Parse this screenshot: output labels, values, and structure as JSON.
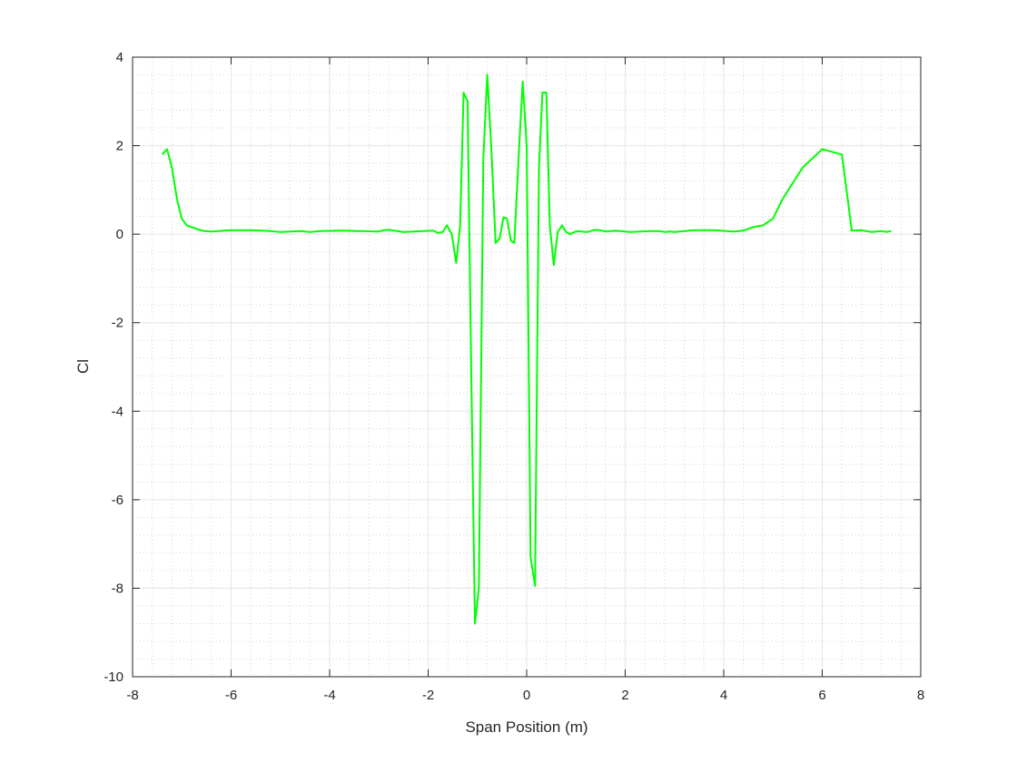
{
  "chart_data": {
    "type": "line",
    "title": "",
    "xlabel": "Span Position (m)",
    "ylabel": "Cl",
    "xlim": [
      -8,
      8
    ],
    "ylim": [
      -10,
      4
    ],
    "xticks": [
      -8,
      -6,
      -4,
      -2,
      0,
      2,
      4,
      6,
      8
    ],
    "yticks": [
      -10,
      -8,
      -6,
      -4,
      -2,
      0,
      2,
      4
    ],
    "xtick_labels": [
      "-8",
      "-6",
      "-4",
      "-2",
      "0",
      "2",
      "4",
      "6",
      "8"
    ],
    "ytick_labels": [
      "-10",
      "-8",
      "-6",
      "-4",
      "-2",
      "0",
      "2",
      "4"
    ],
    "grid": true,
    "minor_grid": true,
    "legend": "none",
    "series": [
      {
        "color": "#00ff00",
        "x": [
          -7.4,
          -7.3,
          -7.2,
          -7.1,
          -7.0,
          -6.9,
          -6.8,
          -6.6,
          -6.4,
          -6.0,
          -5.6,
          -5.2,
          -5.0,
          -4.8,
          -4.6,
          -4.4,
          -4.2,
          -3.8,
          -3.4,
          -3.0,
          -2.9,
          -2.8,
          -2.7,
          -2.5,
          -2.3,
          -2.1,
          -1.9,
          -1.8,
          -1.7,
          -1.62,
          -1.52,
          -1.43,
          -1.35,
          -1.28,
          -1.2,
          -1.12,
          -1.05,
          -0.97,
          -0.88,
          -0.8,
          -0.72,
          -0.63,
          -0.55,
          -0.47,
          -0.4,
          -0.32,
          -0.25,
          -0.17,
          -0.08,
          0.0,
          0.08,
          0.17,
          0.25,
          0.32,
          0.4,
          0.47,
          0.55,
          0.63,
          0.72,
          0.8,
          0.88,
          0.97,
          1.05,
          1.12,
          1.2,
          1.28,
          1.35,
          1.43,
          1.52,
          1.62,
          1.7,
          1.8,
          1.9,
          2.1,
          2.3,
          2.5,
          2.7,
          2.8,
          2.9,
          3.0,
          3.4,
          3.8,
          4.2,
          4.4,
          4.6,
          4.8,
          5.0,
          5.2,
          5.6,
          6.0,
          6.4,
          6.6,
          6.8,
          6.9,
          7.0,
          7.1,
          7.2,
          7.3,
          7.4
        ],
        "y": [
          1.8,
          1.92,
          1.5,
          0.8,
          0.35,
          0.2,
          0.16,
          0.08,
          0.06,
          0.09,
          0.09,
          0.07,
          0.05,
          0.06,
          0.07,
          0.05,
          0.07,
          0.08,
          0.07,
          0.06,
          0.09,
          0.1,
          0.08,
          0.05,
          0.06,
          0.07,
          0.08,
          0.03,
          0.05,
          0.2,
          0.0,
          -0.65,
          0.2,
          3.2,
          3.0,
          -3.5,
          -8.8,
          -8.0,
          1.7,
          3.6,
          2.0,
          -0.2,
          -0.1,
          0.38,
          0.35,
          -0.15,
          -0.2,
          1.6,
          3.45,
          2.0,
          -7.3,
          -7.95,
          1.5,
          3.2,
          3.2,
          0.2,
          -0.7,
          0.05,
          0.2,
          0.05,
          0.0,
          0.05,
          0.07,
          0.06,
          0.05,
          0.06,
          0.09,
          0.1,
          0.08,
          0.06,
          0.07,
          0.08,
          0.07,
          0.05,
          0.06,
          0.07,
          0.07,
          0.05,
          0.06,
          0.05,
          0.09,
          0.09,
          0.06,
          0.08,
          0.16,
          0.2,
          0.35,
          0.8,
          1.5,
          1.92,
          1.8,
          0.08,
          0.09,
          0.07,
          0.05,
          0.06,
          0.07,
          0.05,
          0.07
        ]
      }
    ]
  }
}
